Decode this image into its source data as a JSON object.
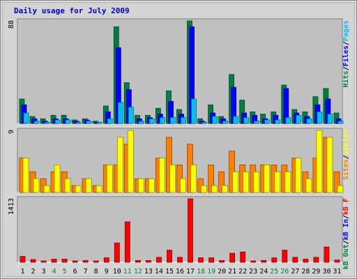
{
  "chart_data": {
    "type": "bar",
    "title": "Daily usage for July 2009",
    "x": [
      "1",
      "2",
      "3",
      "4",
      "5",
      "6",
      "7",
      "8",
      "9",
      "10",
      "11",
      "12",
      "13",
      "14",
      "15",
      "16",
      "17",
      "18",
      "19",
      "20",
      "21",
      "22",
      "23",
      "24",
      "25",
      "26",
      "27",
      "28",
      "29",
      "30",
      "31"
    ],
    "weekend_days": [
      "4",
      "5",
      "11",
      "12",
      "18",
      "19",
      "25",
      "26"
    ],
    "panels": [
      {
        "name": "hits-files-pages",
        "ymax_label": "88",
        "ylim": [
          0,
          88
        ],
        "legend": [
          {
            "label": "Pages",
            "color": "#00c0ff"
          },
          {
            "label": "/",
            "color": "#000000"
          },
          {
            "label": "Files",
            "color": "#0000ff"
          },
          {
            "label": "/",
            "color": "#000000"
          },
          {
            "label": "Hits",
            "color": "#008040"
          }
        ],
        "series": [
          {
            "name": "Hits",
            "color": "#008040",
            "values": [
              21,
              6,
              4,
              7,
              7,
              3,
              4,
              2,
              15,
              83,
              35,
              7,
              7,
              13,
              28,
              12,
              88,
              4,
              16,
              6,
              42,
              20,
              10,
              8,
              10,
              33,
              12,
              10,
              23,
              30,
              9
            ]
          },
          {
            "name": "Files",
            "color": "#0000ff",
            "values": [
              16,
              4,
              2,
              4,
              4,
              2,
              3,
              1,
              10,
              65,
              29,
              4,
              5,
              8,
              19,
              8,
              83,
              2,
              9,
              4,
              31,
              9,
              7,
              4,
              7,
              30,
              9,
              6,
              16,
              21,
              4
            ]
          },
          {
            "name": "Pages",
            "color": "#00c0ff",
            "values": [
              9,
              2,
              1,
              3,
              3,
              1,
              2,
              1,
              4,
              18,
              14,
              2,
              4,
              5,
              5,
              5,
              21,
              1,
              6,
              2,
              6,
              5,
              2,
              3,
              3,
              5,
              7,
              4,
              10,
              8,
              2
            ]
          }
        ]
      },
      {
        "name": "visits-sites",
        "ymax_label": "9",
        "ylim": [
          0,
          9
        ],
        "legend": [
          {
            "label": "Visits",
            "color": "#ffff00"
          },
          {
            "label": "/",
            "color": "#000000"
          },
          {
            "label": "Sites",
            "color": "#ff8000"
          }
        ],
        "series": [
          {
            "name": "Sites",
            "color": "#ff8000",
            "values": [
              5,
              3,
              2,
              3,
              3,
              1,
              2,
              1,
              4,
              4,
              7,
              2,
              2,
              5,
              8,
              4,
              7,
              2,
              4,
              3,
              6,
              4,
              4,
              4,
              4,
              4,
              5,
              3,
              5,
              8,
              3
            ]
          },
          {
            "name": "Visits",
            "color": "#ffff00",
            "values": [
              5,
              2,
              1,
              4,
              2,
              1,
              2,
              1,
              4,
              8,
              9,
              2,
              2,
              5,
              4,
              2,
              4,
              1,
              1,
              1,
              3,
              3,
              3,
              4,
              3,
              3,
              5,
              2,
              9,
              8,
              1
            ]
          }
        ]
      },
      {
        "name": "kbytes",
        "ymax_label": "1413",
        "ylim": [
          0,
          1413
        ],
        "legend": [
          {
            "label": "kB F",
            "color": "#ff0000"
          },
          {
            "label": "/",
            "color": "#000000"
          },
          {
            "label": "kB In",
            "color": "#0000ff"
          },
          {
            "label": "/",
            "color": "#000000"
          },
          {
            "label": "kB Out",
            "color": "#008040"
          }
        ],
        "series": [
          {
            "name": "kB F",
            "color": "#ff0000",
            "values": [
              130,
              60,
              30,
              70,
              70,
              30,
              40,
              30,
              100,
              430,
              900,
              40,
              40,
              110,
              270,
              110,
              1413,
              100,
              100,
              40,
              200,
              230,
              30,
              40,
              100,
              270,
              110,
              70,
              110,
              340,
              50
            ]
          }
        ]
      }
    ]
  }
}
